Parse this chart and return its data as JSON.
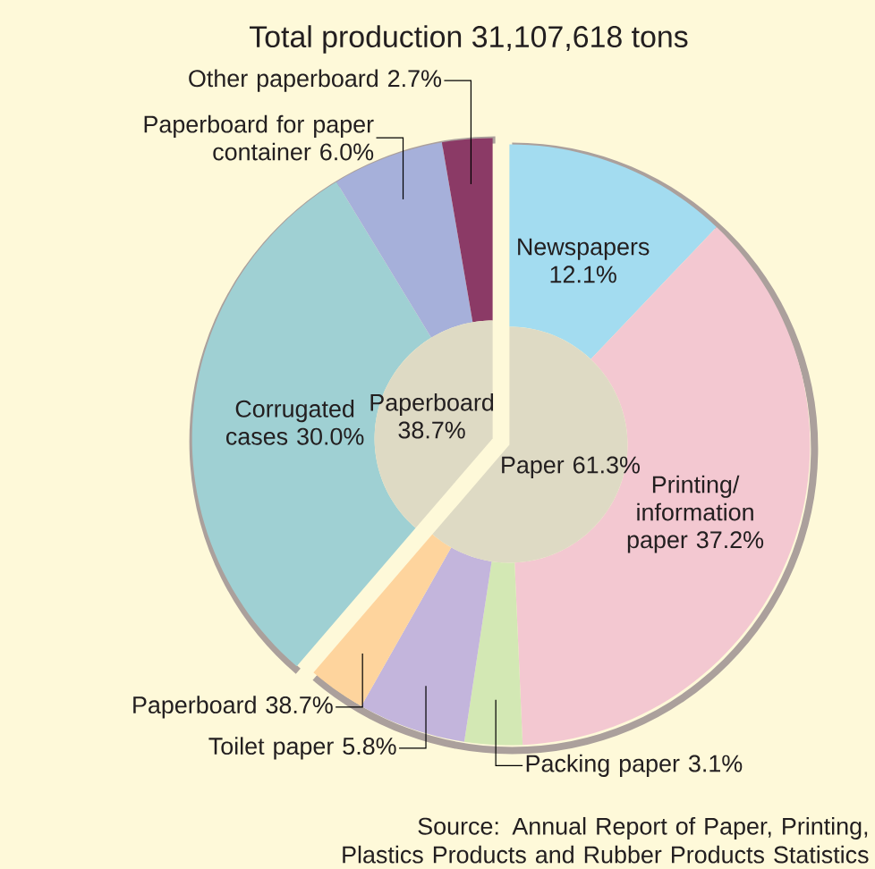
{
  "chart_data": [
    {
      "type": "pie",
      "title": "Total production 31,107,618 tons",
      "categories": [
        "Paper 61.3%",
        "Paperboard 38.7%"
      ],
      "values": [
        61.3,
        38.7
      ],
      "colors": [
        "#dedac4",
        "#dedac4"
      ],
      "annotations": [
        "Source: Annual Report of Paper, Printing, Plastics Products and Rubber Products Statistics"
      ]
    },
    {
      "type": "donut",
      "categories": [
        "Newspapers 12.1%",
        "Printing/ information paper 37.2%",
        "Packing paper 3.1%",
        "Toilet paper 5.8%",
        "Paperboard 38.7%",
        "Corrugated cases 30.0%",
        "Paperboard for paper container 6.0%",
        "Other paperboard 2.7%"
      ],
      "values": [
        12.1,
        37.2,
        3.1,
        5.8,
        3.1,
        30.0,
        6.0,
        2.7
      ],
      "colors": [
        "#a3dcf0",
        "#f3c8d1",
        "#d3e8b4",
        "#c3b5dc",
        "#fed49d",
        "#9fd0d3",
        "#a6b0da",
        "#8b3a66"
      ]
    }
  ]
}
